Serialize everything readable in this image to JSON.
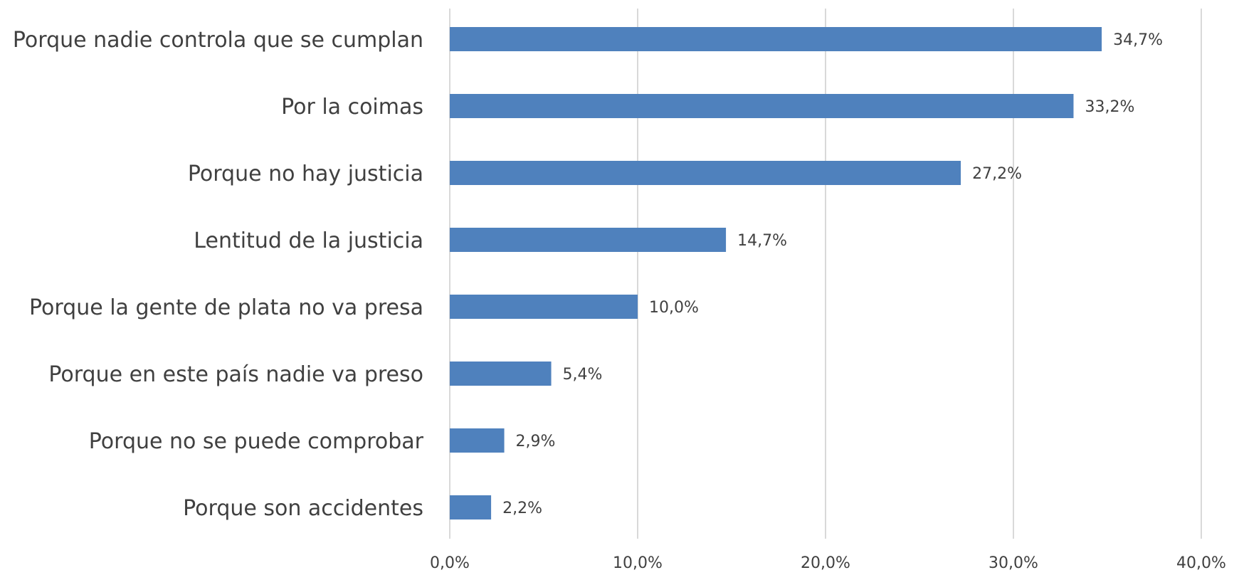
{
  "chart_data": {
    "type": "bar",
    "orientation": "horizontal",
    "title": "",
    "xlabel": "",
    "ylabel": "",
    "categories": [
      "Porque nadie controla que se cumplan",
      "Por la coimas",
      "Porque no hay justicia",
      "Lentitud de la justicia",
      "Porque la gente de plata no va presa",
      "Porque en este país nadie va preso",
      "Porque no se puede comprobar",
      "Porque son accidentes"
    ],
    "values": [
      34.7,
      33.2,
      27.2,
      14.7,
      10.0,
      5.4,
      2.9,
      2.2
    ],
    "value_labels": [
      "34,7%",
      "33,2%",
      "27,2%",
      "14,7%",
      "10,0%",
      "5,4%",
      "2,9%",
      "2,2%"
    ],
    "xlim": [
      0,
      40
    ],
    "ticks": [
      0,
      10,
      20,
      30,
      40
    ],
    "tick_labels": [
      "0,0%",
      "10,0%",
      "20,0%",
      "30,0%",
      "40,0%"
    ],
    "grid": true,
    "legend": "none",
    "colors": {
      "bar": "#4f81bd",
      "grid": "#d9d9d9",
      "text": "#404040"
    }
  }
}
